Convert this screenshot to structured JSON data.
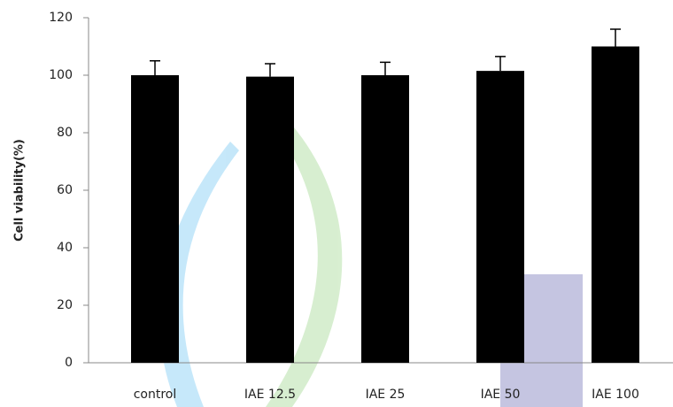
{
  "chart_data": {
    "type": "bar",
    "y_label": "Cell viability(%)",
    "categories": [
      "control",
      "IAE 12.5",
      "IAE 25",
      "IAE 50",
      "IAE 100"
    ],
    "values": [
      100,
      99.5,
      100,
      101.5,
      110
    ],
    "errors": [
      5,
      4.5,
      4.5,
      5,
      6
    ],
    "color": "#000000",
    "ylim": [
      0,
      120
    ],
    "yticks": [
      0,
      20,
      40,
      60,
      80,
      100,
      120
    ]
  }
}
